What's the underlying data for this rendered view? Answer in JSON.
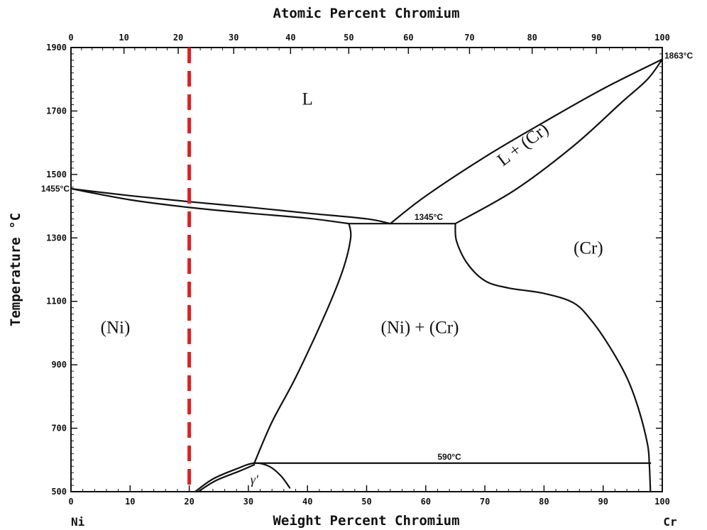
{
  "chart_data": {
    "type": "phase-diagram",
    "title": "",
    "top_axis": {
      "label": "Atomic Percent Chromium",
      "ticks": [
        "0",
        "10",
        "20",
        "30",
        "40",
        "50",
        "60",
        "70",
        "80",
        "90",
        "100"
      ]
    },
    "x_axis": {
      "label": "Weight Percent Chromium",
      "range": [
        0,
        100
      ],
      "ticks": [
        "0",
        "10",
        "20",
        "30",
        "40",
        "50",
        "60",
        "70",
        "80",
        "90",
        "100"
      ]
    },
    "y_axis": {
      "label": "Temperature °C",
      "range": [
        500,
        1900
      ],
      "ticks": [
        "500",
        "700",
        "900",
        "1100",
        "1300",
        "1500",
        "1700",
        "1900"
      ]
    },
    "endpoints": {
      "left": "Ni",
      "right": "Cr"
    },
    "phase_regions": [
      {
        "id": "liquid",
        "label": "L",
        "at": {
          "wt_cr": 40,
          "temp": 1720
        }
      },
      {
        "id": "liquid-plus-cr",
        "label": "L + (Cr)",
        "at": {
          "wt_cr": 77,
          "temp": 1580
        },
        "rotation_deg": -37
      },
      {
        "id": "cr-solid",
        "label": "(Cr)",
        "at": {
          "wt_cr": 87.5,
          "temp": 1250
        }
      },
      {
        "id": "ni-solid",
        "label": "(Ni)",
        "at": {
          "wt_cr": 7.5,
          "temp": 1000
        }
      },
      {
        "id": "two-phase",
        "label": "(Ni) + (Cr)",
        "at": {
          "wt_cr": 59,
          "temp": 1000
        }
      },
      {
        "id": "gamma-prime",
        "label": "γ'",
        "at": {
          "wt_cr": 31,
          "temp": 525
        }
      }
    ],
    "annotations": [
      {
        "label": "1455°C",
        "wt_cr": 0,
        "temp": 1455
      },
      {
        "label": "1863°C",
        "wt_cr": 100,
        "temp": 1863
      },
      {
        "label": "1345°C",
        "wt_cr": 60.5,
        "temp": 1345
      },
      {
        "label": "590°C",
        "wt_cr": 64,
        "temp": 590
      }
    ],
    "marker_line": {
      "wt_cr": 20,
      "color": "#e02020",
      "style": "dashed"
    },
    "curves": [
      {
        "name": "liquidus-ni",
        "points": [
          [
            0,
            1455
          ],
          [
            10,
            1433
          ],
          [
            20,
            1414
          ],
          [
            30,
            1397
          ],
          [
            40,
            1378
          ],
          [
            50,
            1360
          ],
          [
            54,
            1345
          ]
        ]
      },
      {
        "name": "solidus-ni",
        "points": [
          [
            0,
            1455
          ],
          [
            10,
            1420
          ],
          [
            20,
            1396
          ],
          [
            30,
            1378
          ],
          [
            40,
            1362
          ],
          [
            47,
            1345
          ]
        ]
      },
      {
        "name": "eutectic-1345",
        "points": [
          [
            47,
            1345
          ],
          [
            65,
            1345
          ]
        ]
      },
      {
        "name": "liquidus-cr",
        "points": [
          [
            54,
            1345
          ],
          [
            60,
            1432
          ],
          [
            70,
            1555
          ],
          [
            80,
            1665
          ],
          [
            90,
            1770
          ],
          [
            100,
            1863
          ]
        ]
      },
      {
        "name": "solidus-cr",
        "points": [
          [
            65,
            1345
          ],
          [
            75,
            1450
          ],
          [
            85,
            1590
          ],
          [
            93,
            1725
          ],
          [
            97.5,
            1800
          ],
          [
            100,
            1863
          ]
        ]
      },
      {
        "name": "solvus-ni",
        "points": [
          [
            47,
            1345
          ],
          [
            47.3,
            1300
          ],
          [
            46,
            1200
          ],
          [
            43,
            1060
          ],
          [
            38,
            860
          ],
          [
            34,
            720
          ],
          [
            31,
            590
          ]
        ]
      },
      {
        "name": "solvus-cr",
        "points": [
          [
            65,
            1345
          ],
          [
            65.2,
            1290
          ],
          [
            67,
            1220
          ],
          [
            70,
            1165
          ],
          [
            74,
            1142
          ],
          [
            80,
            1125
          ],
          [
            85,
            1095
          ],
          [
            88,
            1040
          ],
          [
            91,
            960
          ],
          [
            94,
            860
          ],
          [
            96,
            760
          ],
          [
            97.5,
            650
          ],
          [
            97.8,
            590
          ],
          [
            98,
            500
          ]
        ]
      },
      {
        "name": "isotherm-590",
        "points": [
          [
            31,
            590
          ],
          [
            98,
            590
          ]
        ]
      },
      {
        "name": "gamma-prime-dome",
        "points": [
          [
            21,
            500
          ],
          [
            24,
            540
          ],
          [
            28,
            572
          ],
          [
            31,
            590
          ],
          [
            33.5,
            580
          ],
          [
            35.5,
            550
          ],
          [
            37,
            512
          ]
        ]
      },
      {
        "name": "gamma-prime-inner",
        "points": [
          [
            21.5,
            500
          ],
          [
            24.5,
            535
          ],
          [
            28.5,
            565
          ],
          [
            31,
            585
          ]
        ]
      }
    ]
  }
}
